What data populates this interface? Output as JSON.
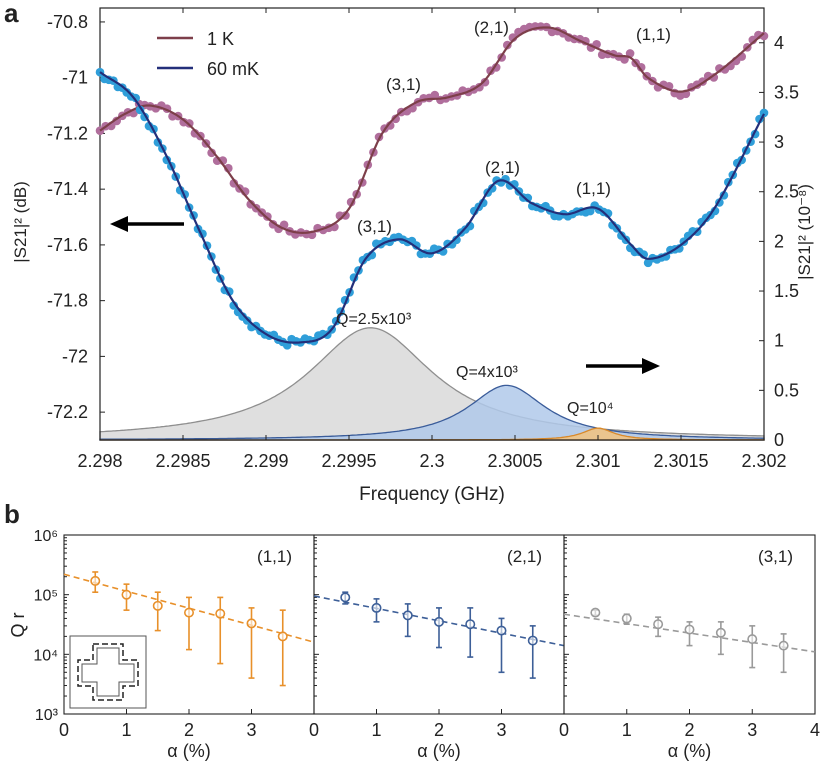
{
  "panel_a": {
    "letter": "a",
    "xlabel": "Frequency (GHz)",
    "ylabel_left": "|S21|² (dB)",
    "ylabel_right": "|S21|² (10⁻⁸)",
    "legend": [
      {
        "label": "1 K",
        "color": "#7d3f4a"
      },
      {
        "label": "60 mK",
        "color": "#232f7a"
      }
    ],
    "mode_labels_1K": [
      "(3,1)",
      "(2,1)",
      "(1,1)"
    ],
    "mode_labels_60mK": [
      "(3,1)",
      "(2,1)",
      "(1,1)"
    ],
    "q_labels": [
      "Q=2.5x10³",
      "Q=4x10³",
      "Q=10⁴"
    ],
    "arrow_left": "left",
    "arrow_right": "right"
  },
  "panel_b": {
    "letter": "b",
    "ylabel": "Q r",
    "xlabel": "α (%)",
    "subplots": [
      {
        "mode": "(1,1)",
        "color": "#e8902a"
      },
      {
        "mode": "(2,1)",
        "color": "#3d5f98"
      },
      {
        "mode": "(3,1)",
        "color": "#9a9a9a"
      }
    ],
    "inset_icon": "cross-geometry-icon"
  },
  "chart_data": [
    {
      "type": "line",
      "panel": "a",
      "xlabel": "Frequency (GHz)",
      "xlim": [
        2.298,
        2.302
      ],
      "xticks": [
        "2.298",
        "2.2985",
        "2.299",
        "2.2995",
        "2.3",
        "2.3005",
        "2.301",
        "2.3015",
        "2.302"
      ],
      "ylabel_left": "|S21|² (dB)",
      "ylim_left": [
        -72.3,
        -70.75
      ],
      "yticks_left": [
        "-70.8",
        "-71",
        "-71.2",
        "-71.4",
        "-71.6",
        "-71.8",
        "-72",
        "-72.2"
      ],
      "ylabel_right": "|S21|² (10⁻⁸)",
      "ylim_right": [
        0,
        4.35
      ],
      "yticks_right": [
        "0",
        "0.5",
        "1",
        "1.5",
        "2",
        "2.5",
        "3",
        "3.5",
        "4"
      ],
      "legend_position": "top-left",
      "series": [
        {
          "name": "1 K",
          "axis": "left",
          "color": "#7d3f4a",
          "marker_color": "#b06e9c",
          "x": [
            2.298,
            2.29815,
            2.2983,
            2.2985,
            2.2987,
            2.2989,
            2.2991,
            2.2993,
            2.2995,
            2.2997,
            2.2999,
            2.3001,
            2.3003,
            2.3005,
            2.3007,
            2.3009,
            2.3011,
            2.3012,
            2.3013,
            2.3015,
            2.3017,
            2.302
          ],
          "y": [
            -71.19,
            -71.13,
            -71.1,
            -71.15,
            -71.28,
            -71.44,
            -71.54,
            -71.55,
            -71.47,
            -71.2,
            -71.09,
            -71.07,
            -71.02,
            -70.86,
            -70.82,
            -70.87,
            -70.92,
            -70.93,
            -71.0,
            -71.05,
            -70.99,
            -70.84
          ]
        },
        {
          "name": "60 mK",
          "axis": "left",
          "color": "#232f7a",
          "marker_color": "#2f9ed9",
          "x": [
            2.298,
            2.2982,
            2.2984,
            2.2986,
            2.2988,
            2.299,
            2.2992,
            2.2994,
            2.2996,
            2.2998,
            2.3,
            2.3002,
            2.3004,
            2.3006,
            2.3008,
            2.301,
            2.3012,
            2.3013,
            2.3015,
            2.3017,
            2.302
          ],
          "y": [
            -70.98,
            -71.07,
            -71.28,
            -71.55,
            -71.8,
            -71.92,
            -71.95,
            -71.9,
            -71.65,
            -71.58,
            -71.63,
            -71.54,
            -71.37,
            -71.45,
            -71.49,
            -71.47,
            -71.6,
            -71.65,
            -71.6,
            -71.47,
            -71.13
          ]
        },
        {
          "name": "Q=2.5x10³",
          "type": "area",
          "axis": "right",
          "color": "#d9d9d9",
          "center": 2.29963,
          "peak": 1.13,
          "Q": 2500
        },
        {
          "name": "Q=4x10³",
          "type": "area",
          "axis": "right",
          "color": "#b0c9ea",
          "center": 2.30045,
          "peak": 0.55,
          "Q": 4000
        },
        {
          "name": "Q=10⁴",
          "type": "area",
          "axis": "right",
          "color": "#f3c27e",
          "center": 2.301,
          "peak": 0.12,
          "Q": 10000
        }
      ]
    },
    {
      "type": "scatter",
      "panel": "b",
      "subplot": "(1,1)",
      "yscale": "log",
      "ylim": [
        1000,
        1000000
      ],
      "yticks": [
        "10³",
        "10⁴",
        "10⁵",
        "10⁶"
      ],
      "xlim": [
        0,
        4
      ],
      "xticks": [
        "0",
        "1",
        "2",
        "3"
      ],
      "xlabel": "α (%)",
      "ylabel": "Q r",
      "points": [
        {
          "x": 0.5,
          "y": 170000,
          "low": 110000,
          "high": 240000
        },
        {
          "x": 1.0,
          "y": 100000,
          "low": 55000,
          "high": 150000
        },
        {
          "x": 1.5,
          "y": 65000,
          "low": 25000,
          "high": 110000
        },
        {
          "x": 2.0,
          "y": 50000,
          "low": 12000,
          "high": 90000
        },
        {
          "x": 2.5,
          "y": 48000,
          "low": 7000,
          "high": 90000
        },
        {
          "x": 3.0,
          "y": 33000,
          "low": 4000,
          "high": 60000
        },
        {
          "x": 3.5,
          "y": 20000,
          "low": 3000,
          "high": 55000
        }
      ],
      "fit": {
        "x": [
          0,
          4
        ],
        "y": [
          220000,
          16000
        ]
      }
    },
    {
      "type": "scatter",
      "panel": "b",
      "subplot": "(2,1)",
      "yscale": "log",
      "ylim": [
        1000,
        1000000
      ],
      "xlim": [
        0,
        4
      ],
      "xticks": [
        "0",
        "1",
        "2",
        "3"
      ],
      "xlabel": "α (%)",
      "points": [
        {
          "x": 0.5,
          "y": 90000,
          "low": 70000,
          "high": 110000
        },
        {
          "x": 1.0,
          "y": 60000,
          "low": 35000,
          "high": 85000
        },
        {
          "x": 1.5,
          "y": 45000,
          "low": 20000,
          "high": 70000
        },
        {
          "x": 2.0,
          "y": 35000,
          "low": 13000,
          "high": 60000
        },
        {
          "x": 2.5,
          "y": 32000,
          "low": 9000,
          "high": 60000
        },
        {
          "x": 3.0,
          "y": 25000,
          "low": 5000,
          "high": 40000
        },
        {
          "x": 3.5,
          "y": 17000,
          "low": 4000,
          "high": 30000
        }
      ],
      "fit": {
        "x": [
          0,
          4
        ],
        "y": [
          95000,
          14000
        ]
      }
    },
    {
      "type": "scatter",
      "panel": "b",
      "subplot": "(3,1)",
      "yscale": "log",
      "ylim": [
        1000,
        1000000
      ],
      "xlim": [
        0,
        4
      ],
      "xticks": [
        "0",
        "1",
        "2",
        "3",
        "4"
      ],
      "xlabel": "α (%)",
      "points": [
        {
          "x": 0.5,
          "y": 50000,
          "low": 45000,
          "high": 55000
        },
        {
          "x": 1.0,
          "y": 40000,
          "low": 32000,
          "high": 47000
        },
        {
          "x": 1.5,
          "y": 32000,
          "low": 20000,
          "high": 42000
        },
        {
          "x": 2.0,
          "y": 26000,
          "low": 14000,
          "high": 35000
        },
        {
          "x": 2.5,
          "y": 23000,
          "low": 10000,
          "high": 35000
        },
        {
          "x": 3.0,
          "y": 18000,
          "low": 6000,
          "high": 30000
        },
        {
          "x": 3.5,
          "y": 14000,
          "low": 5000,
          "high": 22000
        }
      ],
      "fit": {
        "x": [
          0,
          4
        ],
        "y": [
          47000,
          11000
        ]
      }
    }
  ]
}
